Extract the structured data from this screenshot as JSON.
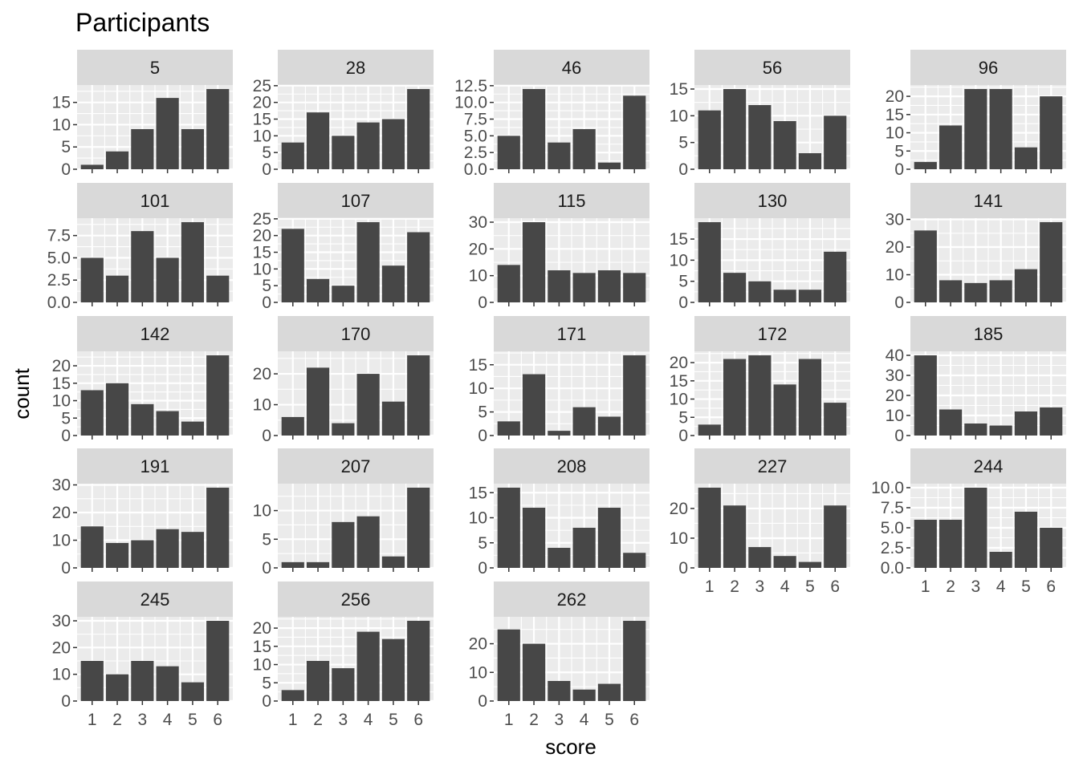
{
  "chart_data": {
    "type": "bar",
    "title": "Participants",
    "xlabel": "score",
    "ylabel": "count",
    "categories": [
      "1",
      "2",
      "3",
      "4",
      "5",
      "6"
    ],
    "grid": true,
    "facet_scales": "free_y",
    "colors": {
      "bar": "#474747",
      "panel_bg": "#ebebeb",
      "grid": "#ffffff",
      "strip_bg": "#d9d9d9",
      "tick_text": "#4d4d4d"
    },
    "panels": [
      {
        "label": "5",
        "values": [
          1,
          4,
          9,
          16,
          9,
          18
        ],
        "ylim": [
          0,
          18.9
        ],
        "yticks": [
          "0",
          "5",
          "10",
          "15"
        ]
      },
      {
        "label": "28",
        "values": [
          8,
          17,
          10,
          14,
          15,
          24
        ],
        "ylim": [
          0,
          25.2
        ],
        "yticks": [
          "0",
          "5",
          "10",
          "15",
          "20",
          "25"
        ]
      },
      {
        "label": "46",
        "values": [
          5,
          12,
          4,
          6,
          1,
          11
        ],
        "ylim": [
          0,
          12.6
        ],
        "yticks": [
          "0.0",
          "2.5",
          "5.0",
          "7.5",
          "10.0",
          "12.5"
        ]
      },
      {
        "label": "56",
        "values": [
          11,
          15,
          12,
          9,
          3,
          10
        ],
        "ylim": [
          0,
          15.75
        ],
        "yticks": [
          "0",
          "5",
          "10",
          "15"
        ]
      },
      {
        "label": "96",
        "values": [
          2,
          12,
          22,
          22,
          6,
          20
        ],
        "ylim": [
          0,
          23.1
        ],
        "yticks": [
          "0",
          "5",
          "10",
          "15",
          "20"
        ]
      },
      {
        "label": "101",
        "values": [
          5,
          3,
          8,
          5,
          9,
          3
        ],
        "ylim": [
          0,
          9.45
        ],
        "yticks": [
          "0.0",
          "2.5",
          "5.0",
          "7.5"
        ]
      },
      {
        "label": "107",
        "values": [
          22,
          7,
          5,
          24,
          11,
          21
        ],
        "ylim": [
          0,
          25.2
        ],
        "yticks": [
          "0",
          "5",
          "10",
          "15",
          "20",
          "25"
        ]
      },
      {
        "label": "115",
        "values": [
          14,
          30,
          12,
          11,
          12,
          11
        ],
        "ylim": [
          0,
          31.5
        ],
        "yticks": [
          "0",
          "10",
          "20",
          "30"
        ]
      },
      {
        "label": "130",
        "values": [
          19,
          7,
          5,
          3,
          3,
          12
        ],
        "ylim": [
          0,
          19.95
        ],
        "yticks": [
          "0",
          "5",
          "10",
          "15"
        ]
      },
      {
        "label": "141",
        "values": [
          26,
          8,
          7,
          8,
          12,
          29
        ],
        "ylim": [
          0,
          30.45
        ],
        "yticks": [
          "0",
          "10",
          "20",
          "30"
        ]
      },
      {
        "label": "142",
        "values": [
          13,
          15,
          9,
          7,
          4,
          23
        ],
        "ylim": [
          0,
          24.15
        ],
        "yticks": [
          "0",
          "5",
          "10",
          "15",
          "20"
        ]
      },
      {
        "label": "170",
        "values": [
          6,
          22,
          4,
          20,
          11,
          26
        ],
        "ylim": [
          0,
          27.3
        ],
        "yticks": [
          "0",
          "10",
          "20"
        ]
      },
      {
        "label": "171",
        "values": [
          3,
          13,
          1,
          6,
          4,
          17
        ],
        "ylim": [
          0,
          17.85
        ],
        "yticks": [
          "0",
          "5",
          "10",
          "15"
        ]
      },
      {
        "label": "172",
        "values": [
          3,
          21,
          22,
          14,
          21,
          9
        ],
        "ylim": [
          0,
          23.1
        ],
        "yticks": [
          "0",
          "5",
          "10",
          "15",
          "20"
        ]
      },
      {
        "label": "185",
        "values": [
          40,
          13,
          6,
          5,
          12,
          14
        ],
        "ylim": [
          0,
          42
        ],
        "yticks": [
          "0",
          "10",
          "20",
          "30",
          "40"
        ]
      },
      {
        "label": "191",
        "values": [
          15,
          9,
          10,
          14,
          13,
          29
        ],
        "ylim": [
          0,
          30.45
        ],
        "yticks": [
          "0",
          "10",
          "20",
          "30"
        ]
      },
      {
        "label": "207",
        "values": [
          1,
          1,
          8,
          9,
          2,
          14
        ],
        "ylim": [
          0,
          14.7
        ],
        "yticks": [
          "0",
          "5",
          "10"
        ]
      },
      {
        "label": "208",
        "values": [
          16,
          12,
          4,
          8,
          12,
          3
        ],
        "ylim": [
          0,
          16.8
        ],
        "yticks": [
          "0",
          "5",
          "10",
          "15"
        ]
      },
      {
        "label": "227",
        "values": [
          27,
          21,
          7,
          4,
          2,
          21
        ],
        "ylim": [
          0,
          28.35
        ],
        "yticks": [
          "0",
          "10",
          "20"
        ]
      },
      {
        "label": "244",
        "values": [
          6,
          6,
          10,
          2,
          7,
          5
        ],
        "ylim": [
          0,
          10.5
        ],
        "yticks": [
          "0.0",
          "2.5",
          "5.0",
          "7.5",
          "10.0"
        ]
      },
      {
        "label": "245",
        "values": [
          15,
          10,
          15,
          13,
          7,
          30
        ],
        "ylim": [
          0,
          31.5
        ],
        "yticks": [
          "0",
          "10",
          "20",
          "30"
        ]
      },
      {
        "label": "256",
        "values": [
          3,
          11,
          9,
          19,
          17,
          22
        ],
        "ylim": [
          0,
          23.1
        ],
        "yticks": [
          "0",
          "5",
          "10",
          "15",
          "20"
        ]
      },
      {
        "label": "262",
        "values": [
          25,
          20,
          7,
          4,
          6,
          28
        ],
        "ylim": [
          0,
          29.4
        ],
        "yticks": [
          "0",
          "10",
          "20"
        ]
      }
    ]
  }
}
